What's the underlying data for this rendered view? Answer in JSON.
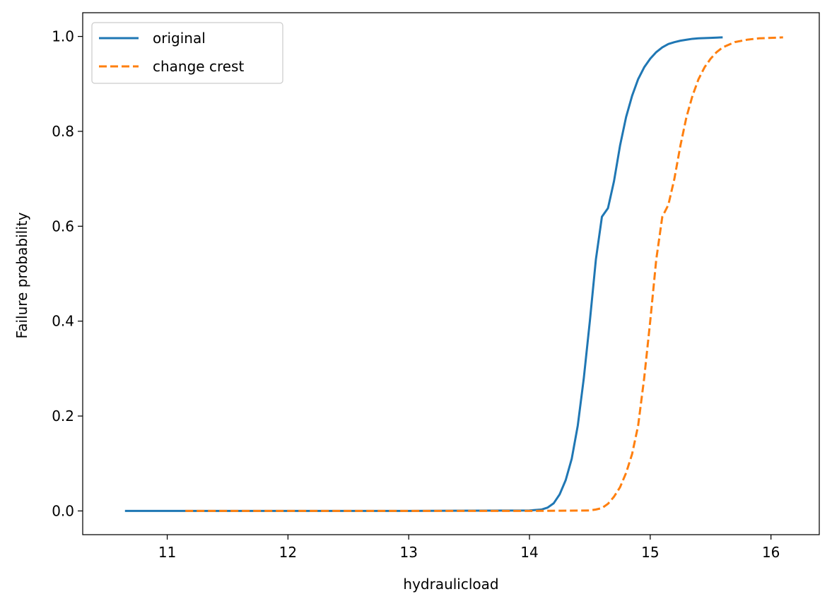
{
  "chart_data": {
    "type": "line",
    "title": "",
    "xlabel": "hydraulicload",
    "ylabel": "Failure probability",
    "xlim": [
      10.3,
      16.4
    ],
    "ylim": [
      -0.05,
      1.05
    ],
    "xticks": [
      11,
      12,
      13,
      14,
      15,
      16
    ],
    "yticks": [
      0.0,
      0.2,
      0.4,
      0.6,
      0.8,
      1.0
    ],
    "xtick_labels": [
      "11",
      "12",
      "13",
      "14",
      "15",
      "16"
    ],
    "ytick_labels": [
      "0.0",
      "0.2",
      "0.4",
      "0.6",
      "0.8",
      "1.0"
    ],
    "grid": false,
    "legend_position": "top-left",
    "series": [
      {
        "name": "original",
        "color": "#1f77b4",
        "style": "solid",
        "x": [
          10.65,
          11.0,
          12.0,
          13.0,
          14.0,
          14.1,
          14.15,
          14.2,
          14.25,
          14.3,
          14.35,
          14.4,
          14.45,
          14.5,
          14.55,
          14.6,
          14.65,
          14.7,
          14.75,
          14.8,
          14.85,
          14.9,
          14.95,
          15.0,
          15.05,
          15.1,
          15.15,
          15.2,
          15.25,
          15.3,
          15.35,
          15.4,
          15.5,
          15.6
        ],
        "y": [
          0.0,
          0.0,
          0.0,
          0.0,
          0.001,
          0.003,
          0.007,
          0.016,
          0.035,
          0.065,
          0.11,
          0.18,
          0.28,
          0.4,
          0.53,
          0.62,
          0.638,
          0.695,
          0.77,
          0.83,
          0.875,
          0.91,
          0.935,
          0.953,
          0.967,
          0.977,
          0.984,
          0.988,
          0.991,
          0.993,
          0.995,
          0.996,
          0.997,
          0.998
        ]
      },
      {
        "name": "change crest",
        "color": "#ff7f0e",
        "style": "dashed",
        "x": [
          11.15,
          12.0,
          13.0,
          14.0,
          14.5,
          14.55,
          14.6,
          14.65,
          14.7,
          14.75,
          14.8,
          14.85,
          14.9,
          14.95,
          15.0,
          15.05,
          15.1,
          15.15,
          15.2,
          15.25,
          15.3,
          15.35,
          15.4,
          15.45,
          15.5,
          15.55,
          15.6,
          15.7,
          15.8,
          15.9,
          16.0,
          16.1
        ],
        "y": [
          0.0,
          0.0,
          0.0,
          0.0,
          0.001,
          0.003,
          0.006,
          0.015,
          0.03,
          0.05,
          0.08,
          0.12,
          0.18,
          0.28,
          0.4,
          0.53,
          0.62,
          0.645,
          0.7,
          0.77,
          0.83,
          0.875,
          0.91,
          0.935,
          0.953,
          0.967,
          0.977,
          0.988,
          0.993,
          0.996,
          0.997,
          0.998
        ]
      }
    ]
  }
}
